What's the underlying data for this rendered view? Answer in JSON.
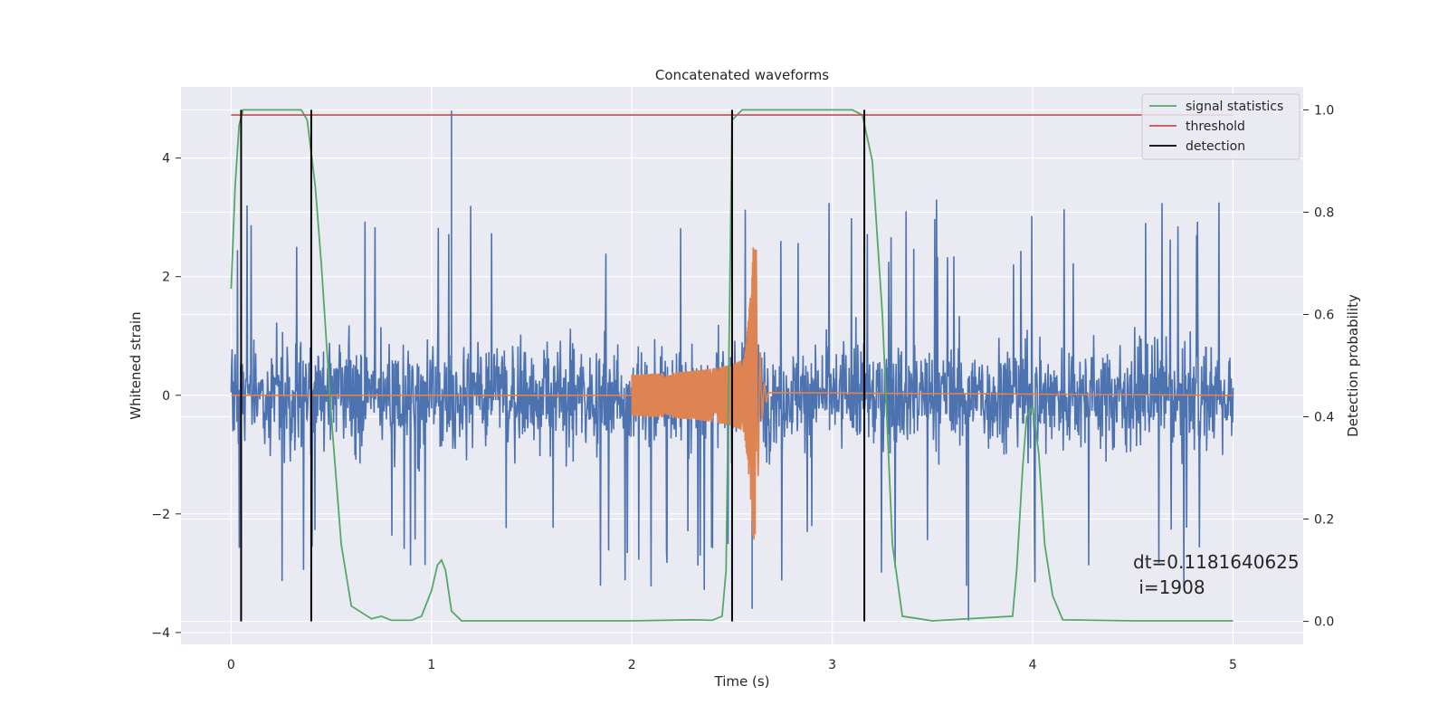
{
  "chart_data": {
    "type": "line",
    "title": "Concatenated waveforms",
    "xlabel": "Time (s)",
    "ylabel": "Whitened strain",
    "ylabel_right": "Detection probability",
    "xlim": [
      -0.25,
      5.35
    ],
    "ylim": [
      -4.2,
      5.2
    ],
    "ylim_right": [
      -0.045,
      1.045
    ],
    "x_ticks": [
      0,
      1,
      2,
      3,
      4,
      5
    ],
    "y_ticks": [
      -4,
      -2,
      0,
      2,
      4
    ],
    "y_ticks_right": [
      0.0,
      0.2,
      0.4,
      0.6,
      0.8,
      1.0
    ],
    "x_tick_labels": [
      "0",
      "1",
      "2",
      "3",
      "4",
      "5"
    ],
    "y_tick_labels": [
      "−4",
      "−2",
      "0",
      "2",
      "4"
    ],
    "y_tick_labels_right": [
      "0.0",
      "0.2",
      "0.4",
      "0.6",
      "0.8",
      "1.0"
    ],
    "grid": true,
    "legend_position": "top-right",
    "legend": [
      {
        "label": "signal statistics",
        "color": "#55a868"
      },
      {
        "label": "threshold",
        "color": "#c44e52"
      },
      {
        "label": "detection",
        "color": "#000000"
      }
    ],
    "annotation": {
      "text_dt": "dt=0.1181640625",
      "text_i": " i=1908",
      "x": 4.5,
      "y": -3.0
    },
    "series": [
      {
        "color": "#4c72b0",
        "kind": "noise",
        "x_range": [
          0,
          5
        ],
        "typical_range": [
          -1.3,
          1.4
        ],
        "extremes": [
          -3.8,
          4.8
        ]
      },
      {
        "color": "#dd8452",
        "kind": "chirp",
        "start": 2.0,
        "merger": 2.62,
        "end": 5.0,
        "peak_amplitude": 2.5
      },
      {
        "name": "signal statistics",
        "color": "#55a868",
        "axis": "right",
        "x": [
          0,
          0.02,
          0.04,
          0.06,
          0.1,
          0.2,
          0.3,
          0.35,
          0.38,
          0.42,
          0.45,
          0.5,
          0.55,
          0.6,
          0.7,
          0.75,
          0.8,
          0.9,
          0.95,
          1.0,
          1.03,
          1.05,
          1.07,
          1.1,
          1.15,
          1.5,
          2.0,
          2.3,
          2.4,
          2.45,
          2.47,
          2.5,
          2.55,
          3.1,
          3.15,
          3.2,
          3.25,
          3.3,
          3.35,
          3.5,
          3.9,
          3.92,
          3.95,
          3.97,
          4.0,
          4.03,
          4.06,
          4.1,
          4.15,
          4.5,
          5.0
        ],
        "y": [
          0.65,
          0.85,
          0.97,
          1.0,
          1.0,
          1.0,
          1.0,
          1.0,
          0.98,
          0.85,
          0.7,
          0.4,
          0.15,
          0.03,
          0.005,
          0.01,
          0.002,
          0.002,
          0.01,
          0.06,
          0.11,
          0.12,
          0.1,
          0.02,
          0.001,
          0.001,
          0.001,
          0.003,
          0.002,
          0.01,
          0.1,
          0.98,
          1.0,
          1.0,
          0.99,
          0.9,
          0.6,
          0.15,
          0.01,
          0.001,
          0.01,
          0.1,
          0.3,
          0.4,
          0.42,
          0.33,
          0.15,
          0.05,
          0.003,
          0.001,
          0.001
        ]
      },
      {
        "name": "threshold",
        "color": "#c44e52",
        "axis": "right",
        "x": [
          0,
          5
        ],
        "y": [
          0.99,
          0.99
        ]
      }
    ],
    "detections": [
      0.05,
      0.4,
      2.5,
      3.16
    ]
  }
}
